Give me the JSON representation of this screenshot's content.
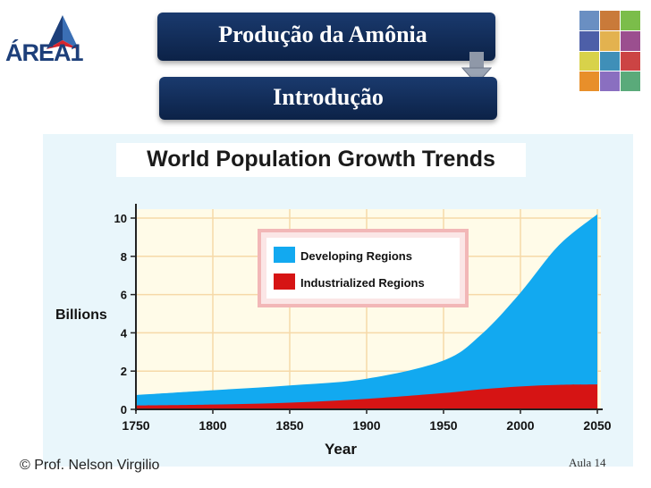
{
  "header": {
    "title": "Produção da Amônia",
    "subtitle": "Introdução",
    "logo_text": "ÁREA",
    "logo_suffix": "1"
  },
  "footer": {
    "author": "© Prof. Nelson Virgilio",
    "lesson": "Aula 14"
  },
  "colors": {
    "header_bg": "#12305e",
    "developing": "#12a9f0",
    "industrialized": "#d61414",
    "plot_bg": "#e9f6fb",
    "grid": "#f6d9a8"
  },
  "chart_data": {
    "type": "area",
    "title": "World Population Growth Trends",
    "xlabel": "Year",
    "ylabel": "Billions",
    "xlim": [
      1750,
      2050
    ],
    "ylim": [
      0,
      10
    ],
    "x_ticks": [
      "1750",
      "1800",
      "1850",
      "1900",
      "1950",
      "2000",
      "2050"
    ],
    "y_ticks": [
      "0",
      "2",
      "4",
      "6",
      "8",
      "10"
    ],
    "grid": true,
    "legend_position": "top-center",
    "stacked": true,
    "x": [
      1750,
      1800,
      1850,
      1900,
      1950,
      1975,
      2000,
      2025,
      2050
    ],
    "series": [
      {
        "name": "Industrialized Regions",
        "values": [
          0.2,
          0.25,
          0.35,
          0.55,
          0.85,
          1.05,
          1.2,
          1.28,
          1.3
        ]
      },
      {
        "name": "Developing Regions",
        "values": [
          0.55,
          0.75,
          0.9,
          1.05,
          1.7,
          2.9,
          4.9,
          7.3,
          8.9
        ]
      }
    ]
  }
}
